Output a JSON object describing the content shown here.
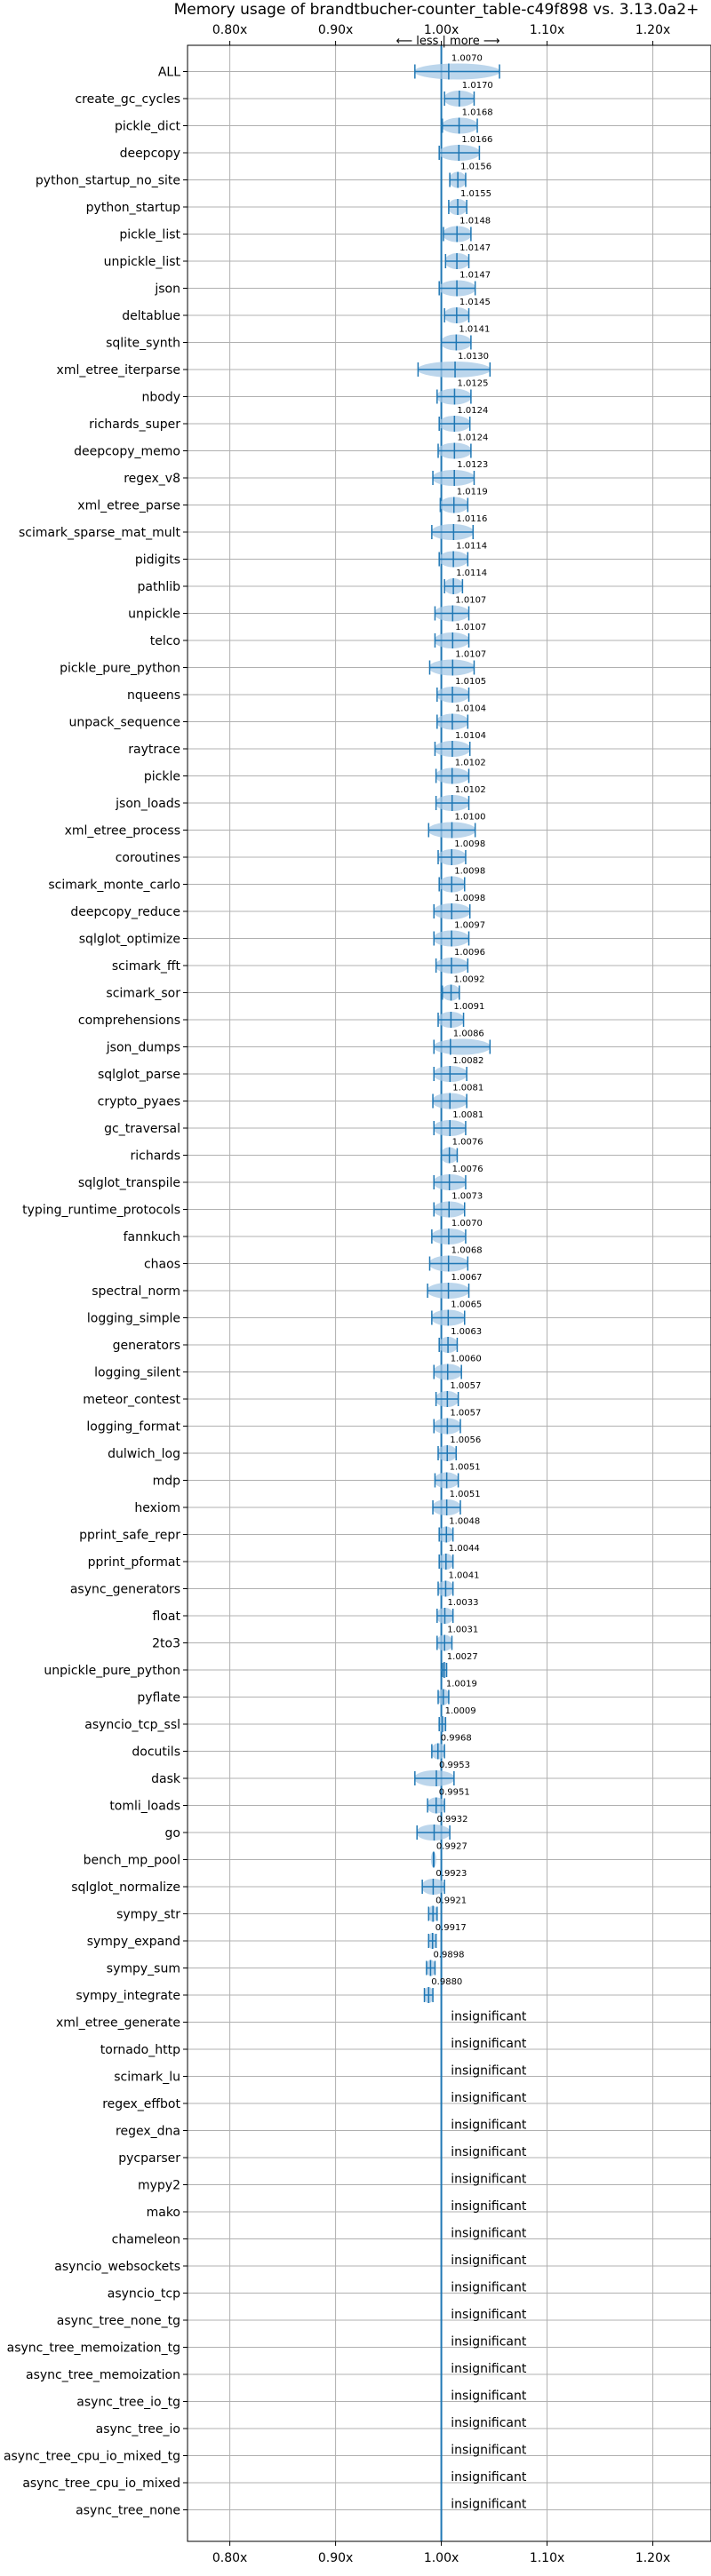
{
  "chart_data": {
    "type": "scatter",
    "title": "Memory usage of brandtbucher-counter_table-c49f898 vs. 3.13.0a2+",
    "direction_label": "⟵ less | more ⟶",
    "x_ticks": [
      "0.80x",
      "0.90x",
      "1.00x",
      "1.10x",
      "1.20x"
    ],
    "x_tick_values": [
      0.8,
      0.9,
      1.0,
      1.1,
      1.2
    ],
    "xlim": [
      0.76,
      1.255
    ],
    "reference_line": 1.0,
    "grid": true,
    "insignificant_label": "insignificant",
    "series": [
      {
        "name": "ALL",
        "value": 1.007,
        "label": "1.0070",
        "lo": 0.975,
        "hi": 1.055,
        "significant": true
      },
      {
        "name": "create_gc_cycles",
        "value": 1.017,
        "label": "1.0170",
        "lo": 1.003,
        "hi": 1.031,
        "significant": true
      },
      {
        "name": "pickle_dict",
        "value": 1.0168,
        "label": "1.0168",
        "lo": 1.001,
        "hi": 1.034,
        "significant": true
      },
      {
        "name": "deepcopy",
        "value": 1.0166,
        "label": "1.0166",
        "lo": 0.998,
        "hi": 1.036,
        "significant": true
      },
      {
        "name": "python_startup_no_site",
        "value": 1.0156,
        "label": "1.0156",
        "lo": 1.008,
        "hi": 1.023,
        "significant": true
      },
      {
        "name": "python_startup",
        "value": 1.0155,
        "label": "1.0155",
        "lo": 1.007,
        "hi": 1.024,
        "significant": true
      },
      {
        "name": "pickle_list",
        "value": 1.0148,
        "label": "1.0148",
        "lo": 1.002,
        "hi": 1.028,
        "significant": true
      },
      {
        "name": "unpickle_list",
        "value": 1.0147,
        "label": "1.0147",
        "lo": 1.004,
        "hi": 1.026,
        "significant": true
      },
      {
        "name": "json",
        "value": 1.0147,
        "label": "1.0147",
        "lo": 0.998,
        "hi": 1.032,
        "significant": true
      },
      {
        "name": "deltablue",
        "value": 1.0145,
        "label": "1.0145",
        "lo": 1.003,
        "hi": 1.026,
        "significant": true
      },
      {
        "name": "sqlite_synth",
        "value": 1.0141,
        "label": "1.0141",
        "lo": 1.0,
        "hi": 1.028,
        "significant": true
      },
      {
        "name": "xml_etree_iterparse",
        "value": 1.013,
        "label": "1.0130",
        "lo": 0.978,
        "hi": 1.046,
        "significant": true
      },
      {
        "name": "nbody",
        "value": 1.0125,
        "label": "1.0125",
        "lo": 0.996,
        "hi": 1.028,
        "significant": true
      },
      {
        "name": "richards_super",
        "value": 1.0124,
        "label": "1.0124",
        "lo": 0.998,
        "hi": 1.027,
        "significant": true
      },
      {
        "name": "deepcopy_memo",
        "value": 1.0124,
        "label": "1.0124",
        "lo": 0.997,
        "hi": 1.028,
        "significant": true
      },
      {
        "name": "regex_v8",
        "value": 1.0123,
        "label": "1.0123",
        "lo": 0.992,
        "hi": 1.031,
        "significant": true
      },
      {
        "name": "xml_etree_parse",
        "value": 1.0119,
        "label": "1.0119",
        "lo": 0.999,
        "hi": 1.025,
        "significant": true
      },
      {
        "name": "scimark_sparse_mat_mult",
        "value": 1.0116,
        "label": "1.0116",
        "lo": 0.991,
        "hi": 1.03,
        "significant": true
      },
      {
        "name": "pidigits",
        "value": 1.0114,
        "label": "1.0114",
        "lo": 0.998,
        "hi": 1.025,
        "significant": true
      },
      {
        "name": "pathlib",
        "value": 1.0114,
        "label": "1.0114",
        "lo": 1.003,
        "hi": 1.02,
        "significant": true
      },
      {
        "name": "unpickle",
        "value": 1.0107,
        "label": "1.0107",
        "lo": 0.994,
        "hi": 1.026,
        "significant": true
      },
      {
        "name": "telco",
        "value": 1.0107,
        "label": "1.0107",
        "lo": 0.994,
        "hi": 1.026,
        "significant": true
      },
      {
        "name": "pickle_pure_python",
        "value": 1.0107,
        "label": "1.0107",
        "lo": 0.989,
        "hi": 1.031,
        "significant": true
      },
      {
        "name": "nqueens",
        "value": 1.0105,
        "label": "1.0105",
        "lo": 0.996,
        "hi": 1.026,
        "significant": true
      },
      {
        "name": "unpack_sequence",
        "value": 1.0104,
        "label": "1.0104",
        "lo": 0.996,
        "hi": 1.025,
        "significant": true
      },
      {
        "name": "raytrace",
        "value": 1.0104,
        "label": "1.0104",
        "lo": 0.994,
        "hi": 1.027,
        "significant": true
      },
      {
        "name": "pickle",
        "value": 1.0102,
        "label": "1.0102",
        "lo": 0.995,
        "hi": 1.026,
        "significant": true
      },
      {
        "name": "json_loads",
        "value": 1.0102,
        "label": "1.0102",
        "lo": 0.995,
        "hi": 1.026,
        "significant": true
      },
      {
        "name": "xml_etree_process",
        "value": 1.01,
        "label": "1.0100",
        "lo": 0.988,
        "hi": 1.032,
        "significant": true
      },
      {
        "name": "coroutines",
        "value": 1.0098,
        "label": "1.0098",
        "lo": 0.997,
        "hi": 1.023,
        "significant": true
      },
      {
        "name": "scimark_monte_carlo",
        "value": 1.0098,
        "label": "1.0098",
        "lo": 0.998,
        "hi": 1.022,
        "significant": true
      },
      {
        "name": "deepcopy_reduce",
        "value": 1.0098,
        "label": "1.0098",
        "lo": 0.993,
        "hi": 1.027,
        "significant": true
      },
      {
        "name": "sqlglot_optimize",
        "value": 1.0097,
        "label": "1.0097",
        "lo": 0.993,
        "hi": 1.026,
        "significant": true
      },
      {
        "name": "scimark_fft",
        "value": 1.0096,
        "label": "1.0096",
        "lo": 0.995,
        "hi": 1.025,
        "significant": true
      },
      {
        "name": "scimark_sor",
        "value": 1.0092,
        "label": "1.0092",
        "lo": 1.001,
        "hi": 1.017,
        "significant": true
      },
      {
        "name": "comprehensions",
        "value": 1.0091,
        "label": "1.0091",
        "lo": 0.997,
        "hi": 1.021,
        "significant": true
      },
      {
        "name": "json_dumps",
        "value": 1.0086,
        "label": "1.0086",
        "lo": 0.993,
        "hi": 1.046,
        "significant": true
      },
      {
        "name": "sqlglot_parse",
        "value": 1.0082,
        "label": "1.0082",
        "lo": 0.993,
        "hi": 1.024,
        "significant": true
      },
      {
        "name": "crypto_pyaes",
        "value": 1.0081,
        "label": "1.0081",
        "lo": 0.992,
        "hi": 1.024,
        "significant": true
      },
      {
        "name": "gc_traversal",
        "value": 1.0081,
        "label": "1.0081",
        "lo": 0.993,
        "hi": 1.023,
        "significant": true
      },
      {
        "name": "richards",
        "value": 1.0076,
        "label": "1.0076",
        "lo": 1.0,
        "hi": 1.015,
        "significant": true
      },
      {
        "name": "sqlglot_transpile",
        "value": 1.0076,
        "label": "1.0076",
        "lo": 0.993,
        "hi": 1.023,
        "significant": true
      },
      {
        "name": "typing_runtime_protocols",
        "value": 1.0073,
        "label": "1.0073",
        "lo": 0.993,
        "hi": 1.022,
        "significant": true
      },
      {
        "name": "fannkuch",
        "value": 1.007,
        "label": "1.0070",
        "lo": 0.991,
        "hi": 1.023,
        "significant": true
      },
      {
        "name": "chaos",
        "value": 1.0068,
        "label": "1.0068",
        "lo": 0.989,
        "hi": 1.025,
        "significant": true
      },
      {
        "name": "spectral_norm",
        "value": 1.0067,
        "label": "1.0067",
        "lo": 0.987,
        "hi": 1.026,
        "significant": true
      },
      {
        "name": "logging_simple",
        "value": 1.0065,
        "label": "1.0065",
        "lo": 0.991,
        "hi": 1.022,
        "significant": true
      },
      {
        "name": "generators",
        "value": 1.0063,
        "label": "1.0063",
        "lo": 0.998,
        "hi": 1.015,
        "significant": true
      },
      {
        "name": "logging_silent",
        "value": 1.006,
        "label": "1.0060",
        "lo": 0.993,
        "hi": 1.019,
        "significant": true
      },
      {
        "name": "meteor_contest",
        "value": 1.0057,
        "label": "1.0057",
        "lo": 0.995,
        "hi": 1.016,
        "significant": true
      },
      {
        "name": "logging_format",
        "value": 1.0057,
        "label": "1.0057",
        "lo": 0.993,
        "hi": 1.018,
        "significant": true
      },
      {
        "name": "dulwich_log",
        "value": 1.0056,
        "label": "1.0056",
        "lo": 0.997,
        "hi": 1.014,
        "significant": true
      },
      {
        "name": "mdp",
        "value": 1.0051,
        "label": "1.0051",
        "lo": 0.994,
        "hi": 1.016,
        "significant": true
      },
      {
        "name": "hexiom",
        "value": 1.0051,
        "label": "1.0051",
        "lo": 0.992,
        "hi": 1.018,
        "significant": true
      },
      {
        "name": "pprint_safe_repr",
        "value": 1.0048,
        "label": "1.0048",
        "lo": 0.998,
        "hi": 1.011,
        "significant": true
      },
      {
        "name": "pprint_pformat",
        "value": 1.0044,
        "label": "1.0044",
        "lo": 0.998,
        "hi": 1.011,
        "significant": true
      },
      {
        "name": "async_generators",
        "value": 1.0041,
        "label": "1.0041",
        "lo": 0.997,
        "hi": 1.011,
        "significant": true
      },
      {
        "name": "float",
        "value": 1.0033,
        "label": "1.0033",
        "lo": 0.996,
        "hi": 1.011,
        "significant": true
      },
      {
        "name": "2to3",
        "value": 1.0031,
        "label": "1.0031",
        "lo": 0.996,
        "hi": 1.01,
        "significant": true
      },
      {
        "name": "unpickle_pure_python",
        "value": 1.0027,
        "label": "1.0027",
        "lo": 1.001,
        "hi": 1.005,
        "significant": true
      },
      {
        "name": "pyflate",
        "value": 1.0019,
        "label": "1.0019",
        "lo": 0.997,
        "hi": 1.007,
        "significant": true
      },
      {
        "name": "asyncio_tcp_ssl",
        "value": 1.0009,
        "label": "1.0009",
        "lo": 0.998,
        "hi": 1.004,
        "significant": true
      },
      {
        "name": "docutils",
        "value": 0.9968,
        "label": "0.9968",
        "lo": 0.991,
        "hi": 1.003,
        "significant": true
      },
      {
        "name": "dask",
        "value": 0.9953,
        "label": "0.9953",
        "lo": 0.975,
        "hi": 1.012,
        "significant": true
      },
      {
        "name": "tomli_loads",
        "value": 0.9951,
        "label": "0.9951",
        "lo": 0.987,
        "hi": 1.003,
        "significant": true
      },
      {
        "name": "go",
        "value": 0.9932,
        "label": "0.9932",
        "lo": 0.977,
        "hi": 1.008,
        "significant": true
      },
      {
        "name": "bench_mp_pool",
        "value": 0.9927,
        "label": "0.9927",
        "lo": 0.9925,
        "hi": 0.9929,
        "significant": true
      },
      {
        "name": "sqlglot_normalize",
        "value": 0.9923,
        "label": "0.9923",
        "lo": 0.982,
        "hi": 1.003,
        "significant": true
      },
      {
        "name": "sympy_str",
        "value": 0.9921,
        "label": "0.9921",
        "lo": 0.988,
        "hi": 0.996,
        "significant": true
      },
      {
        "name": "sympy_expand",
        "value": 0.9917,
        "label": "0.9917",
        "lo": 0.988,
        "hi": 0.995,
        "significant": true
      },
      {
        "name": "sympy_sum",
        "value": 0.9898,
        "label": "0.9898",
        "lo": 0.986,
        "hi": 0.994,
        "significant": true
      },
      {
        "name": "sympy_integrate",
        "value": 0.988,
        "label": "0.9880",
        "lo": 0.984,
        "hi": 0.992,
        "significant": true
      },
      {
        "name": "xml_etree_generate",
        "significant": false
      },
      {
        "name": "tornado_http",
        "significant": false
      },
      {
        "name": "scimark_lu",
        "significant": false
      },
      {
        "name": "regex_effbot",
        "significant": false
      },
      {
        "name": "regex_dna",
        "significant": false
      },
      {
        "name": "pycparser",
        "significant": false
      },
      {
        "name": "mypy2",
        "significant": false
      },
      {
        "name": "mako",
        "significant": false
      },
      {
        "name": "chameleon",
        "significant": false
      },
      {
        "name": "asyncio_websockets",
        "significant": false
      },
      {
        "name": "asyncio_tcp",
        "significant": false
      },
      {
        "name": "async_tree_none_tg",
        "significant": false
      },
      {
        "name": "async_tree_memoization_tg",
        "significant": false
      },
      {
        "name": "async_tree_memoization",
        "significant": false
      },
      {
        "name": "async_tree_io_tg",
        "significant": false
      },
      {
        "name": "async_tree_io",
        "significant": false
      },
      {
        "name": "async_tree_cpu_io_mixed_tg",
        "significant": false
      },
      {
        "name": "async_tree_cpu_io_mixed",
        "significant": false
      },
      {
        "name": "async_tree_none",
        "significant": false
      }
    ]
  },
  "colors": {
    "accent": "#1f77b4",
    "violin_fill": "#a6c8e6",
    "grid": "#b0b0b0",
    "axes": "#000000"
  }
}
